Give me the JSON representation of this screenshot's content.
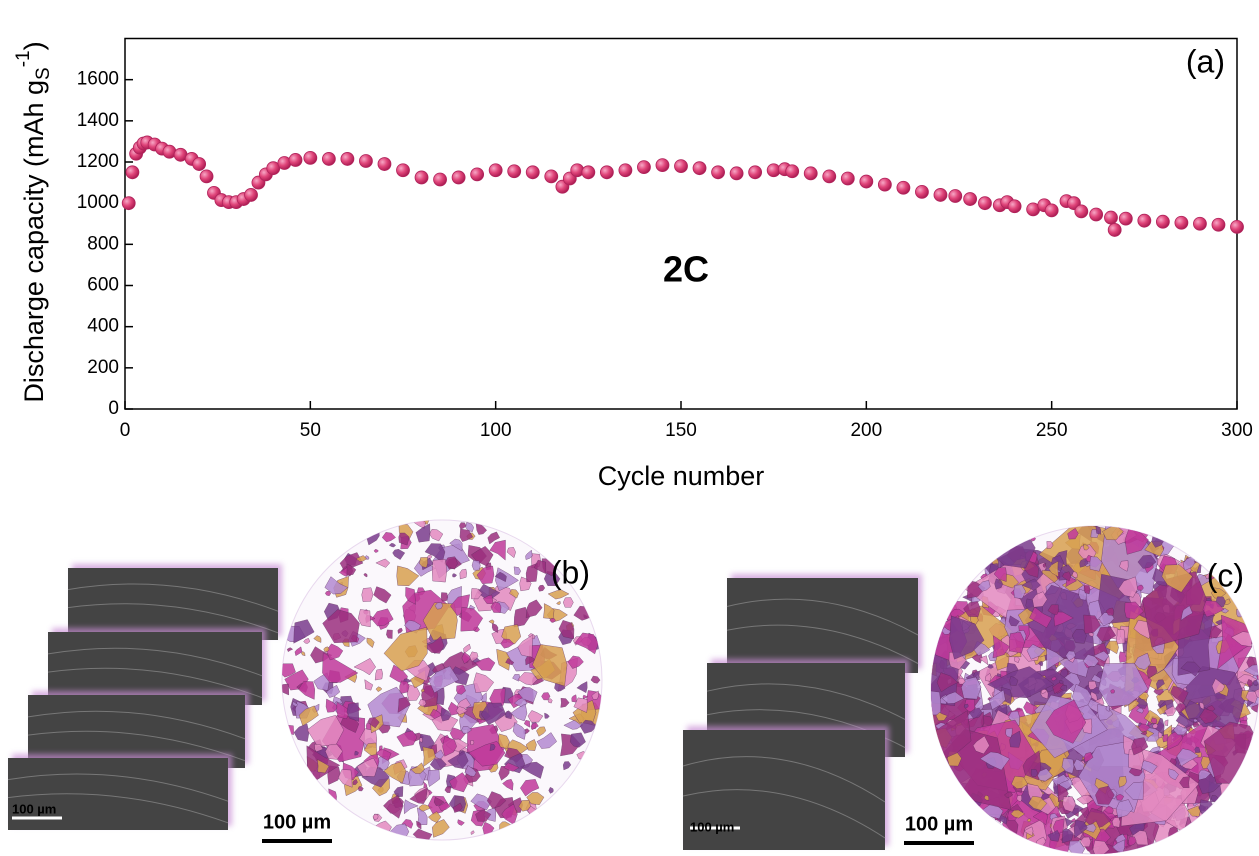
{
  "chart_data": {
    "type": "scatter",
    "annotation": "2C",
    "panel_label": "(a)",
    "xlabel": "Cycle number",
    "ylabel": {
      "main": "Discharge capacity (mAh g",
      "sub": "S",
      "sup": "-1",
      "end": ")"
    },
    "xlim": [
      0,
      300
    ],
    "xticks": [
      0,
      50,
      100,
      150,
      200,
      250,
      300
    ],
    "ylim": [
      0,
      1800
    ],
    "yticks": [
      0,
      200,
      400,
      600,
      800,
      1000,
      1200,
      1400,
      1600
    ],
    "color": "#e0457a",
    "x": [
      1,
      2,
      3,
      4,
      5,
      6,
      8,
      10,
      12,
      15,
      18,
      20,
      22,
      24,
      26,
      28,
      30,
      32,
      34,
      36,
      38,
      40,
      43,
      46,
      50,
      55,
      60,
      65,
      70,
      75,
      80,
      85,
      90,
      95,
      100,
      105,
      110,
      115,
      118,
      120,
      122,
      125,
      130,
      135,
      140,
      145,
      150,
      155,
      160,
      165,
      170,
      175,
      178,
      180,
      185,
      190,
      195,
      200,
      205,
      210,
      215,
      220,
      224,
      228,
      232,
      236,
      238,
      240,
      245,
      248,
      250,
      254,
      256,
      258,
      262,
      266,
      267,
      270,
      275,
      280,
      285,
      290,
      295,
      300
    ],
    "values": [
      1000,
      1150,
      1240,
      1270,
      1290,
      1295,
      1285,
      1265,
      1250,
      1235,
      1215,
      1190,
      1130,
      1050,
      1015,
      1005,
      1005,
      1020,
      1040,
      1100,
      1140,
      1170,
      1195,
      1210,
      1220,
      1215,
      1215,
      1205,
      1190,
      1160,
      1125,
      1115,
      1125,
      1140,
      1160,
      1155,
      1150,
      1130,
      1080,
      1120,
      1160,
      1150,
      1150,
      1160,
      1175,
      1185,
      1180,
      1170,
      1150,
      1145,
      1150,
      1160,
      1165,
      1155,
      1145,
      1130,
      1120,
      1105,
      1090,
      1075,
      1055,
      1040,
      1035,
      1020,
      1000,
      990,
      1005,
      985,
      970,
      990,
      965,
      1010,
      1000,
      960,
      945,
      930,
      870,
      925,
      915,
      910,
      905,
      900,
      895,
      885
    ]
  },
  "panels": [
    {
      "label": "(b)",
      "scale_bars": [
        "100 µm",
        "100 µm"
      ]
    },
    {
      "label": "(c)",
      "scale_bars": [
        "100 µm",
        "100 µm"
      ]
    }
  ]
}
